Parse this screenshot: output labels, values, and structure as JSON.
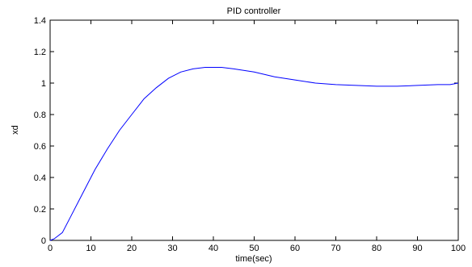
{
  "chart_data": {
    "type": "line",
    "title": "PID controller",
    "xlabel": "time(sec)",
    "ylabel": "xd",
    "xlim": [
      0,
      100
    ],
    "ylim": [
      0,
      1.4
    ],
    "xticks": [
      0,
      10,
      20,
      30,
      40,
      50,
      60,
      70,
      80,
      90,
      100
    ],
    "yticks": [
      0,
      0.2,
      0.4,
      0.6,
      0.8,
      1,
      1.2,
      1.4
    ],
    "grid": false,
    "series": [
      {
        "color": "#0000ff",
        "x": [
          0,
          1,
          3,
          5,
          8,
          11,
          14,
          17,
          20,
          23,
          26,
          29,
          32,
          35,
          38,
          40,
          42,
          45,
          50,
          55,
          60,
          65,
          70,
          75,
          80,
          85,
          90,
          95,
          98,
          100
        ],
        "y": [
          0,
          0.01,
          0.05,
          0.15,
          0.3,
          0.45,
          0.58,
          0.7,
          0.8,
          0.9,
          0.97,
          1.03,
          1.07,
          1.09,
          1.1,
          1.1,
          1.1,
          1.09,
          1.07,
          1.04,
          1.02,
          1.0,
          0.99,
          0.985,
          0.98,
          0.98,
          0.985,
          0.99,
          0.99,
          1.0
        ]
      }
    ]
  }
}
